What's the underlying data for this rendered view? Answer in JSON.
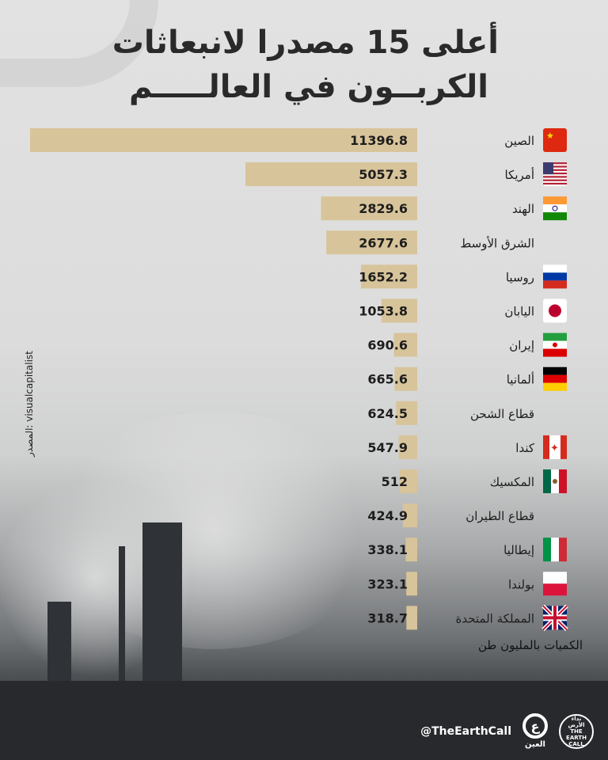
{
  "title_lines": [
    "أعلى 15 مصدرا لانبعاثات",
    "الكربــون في العالـــــم"
  ],
  "source": "المصدر: visualcapitalist",
  "unit_note": "الكميات بالمليون طن",
  "footer": {
    "handle": "@TheEarthCall",
    "logo1_text": "نداء الأرض THE EARTH CALL",
    "logo2_text": "العين"
  },
  "colors": {
    "bar": "#d8c49a",
    "text": "#1d1d1d"
  },
  "chart_data": {
    "type": "bar",
    "orientation": "horizontal",
    "direction": "right-to-left",
    "title": "أعلى 15 مصدرا لانبعاثات الكربــون في العالـــــم",
    "unit": "الكميات بالمليون طن",
    "xlim": [
      0,
      11396.8
    ],
    "grid": false,
    "categories": [
      "الصين",
      "أمريكا",
      "الهند",
      "الشرق الأوسط",
      "روسيا",
      "اليابان",
      "إيران",
      "ألمانيا",
      "قطاع الشحن",
      "كندا",
      "المكسيك",
      "قطاع الطيران",
      "إيطاليا",
      "بولندا",
      "المملكة المتحدة"
    ],
    "value_labels": [
      "11396.8",
      "5057.3",
      "2829.6",
      "2677.6",
      "1652.2",
      "1053.8",
      "690.6",
      "665.6",
      "624.5",
      "547.9",
      "512",
      "424.9",
      "338.1",
      "323.1",
      "318.7"
    ],
    "values": [
      11396.8,
      5057.3,
      2829.6,
      2677.6,
      1652.2,
      1053.8,
      690.6,
      665.6,
      624.5,
      547.9,
      512,
      424.9,
      338.1,
      323.1,
      318.7
    ],
    "flags": [
      "china-flag",
      "usa-flag",
      "india-flag",
      "",
      "russia-flag",
      "japan-flag",
      "iran-flag",
      "germany-flag",
      "",
      "canada-flag",
      "mexico-flag",
      "",
      "italy-flag",
      "poland-flag",
      "uk-flag"
    ]
  }
}
